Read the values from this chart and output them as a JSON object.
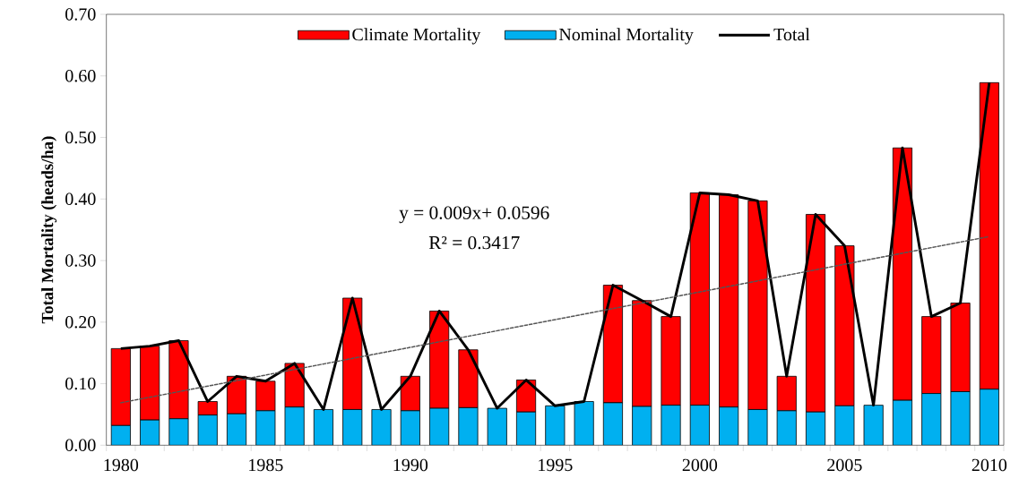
{
  "chart_data": {
    "type": "bar",
    "stacked": true,
    "ylabel": "Total Mortality (heads/ha)",
    "legend": "top",
    "x": [
      1980,
      1981,
      1982,
      1983,
      1984,
      1985,
      1986,
      1987,
      1988,
      1989,
      1990,
      1991,
      1992,
      1993,
      1994,
      1995,
      1996,
      1997,
      1998,
      1999,
      2000,
      2001,
      2002,
      2003,
      2004,
      2005,
      2006,
      2007,
      2008,
      2009,
      2010
    ],
    "series": [
      {
        "name": "Nominal Mortality",
        "color": "#00b0f0",
        "values": [
          0.032,
          0.041,
          0.043,
          0.049,
          0.051,
          0.056,
          0.062,
          0.058,
          0.058,
          0.058,
          0.056,
          0.06,
          0.061,
          0.06,
          0.054,
          0.064,
          0.071,
          0.069,
          0.063,
          0.065,
          0.065,
          0.062,
          0.058,
          0.056,
          0.054,
          0.064,
          0.065,
          0.073,
          0.084,
          0.087,
          0.091
        ]
      },
      {
        "name": "Climate Mortality",
        "color": "#ff0000",
        "values": [
          0.125,
          0.12,
          0.127,
          0.022,
          0.061,
          0.048,
          0.071,
          0,
          0.181,
          0,
          0.056,
          0.158,
          0.094,
          0,
          0.052,
          0,
          0,
          0.191,
          0.172,
          0.144,
          0.345,
          0.345,
          0.339,
          0.056,
          0.321,
          0.26,
          0,
          0.41,
          0.125,
          0.144,
          0.498
        ]
      },
      {
        "name": "Total",
        "type": "line",
        "color": "#000000",
        "line_style": "solid",
        "values": [
          0.157,
          0.161,
          0.17,
          0.071,
          0.112,
          0.104,
          0.133,
          0.058,
          0.239,
          0.058,
          0.112,
          0.218,
          0.155,
          0.06,
          0.106,
          0.064,
          0.071,
          0.26,
          0.235,
          0.209,
          0.41,
          0.407,
          0.397,
          0.112,
          0.375,
          0.324,
          0.065,
          0.483,
          0.209,
          0.231,
          0.589
        ]
      },
      {
        "type": "line",
        "color": "#555555",
        "line_style": "dashed",
        "x": [
          1980,
          2010
        ],
        "values": [
          0.069,
          0.339
        ]
      }
    ],
    "xlim": [
      1979.5,
      2010.5
    ],
    "xticks": [
      1980,
      1985,
      1990,
      1995,
      2000,
      2005,
      2010,
      {
        "value": 1979.5,
        "label": null
      },
      {
        "value": 1980.5,
        "label": null
      },
      {
        "value": 1981.5,
        "label": null
      },
      {
        "value": 1982.5,
        "label": null
      },
      {
        "value": 1983.5,
        "label": null
      },
      {
        "value": 1984.5,
        "label": null
      },
      {
        "value": 1985.5,
        "label": null
      },
      {
        "value": 1986.5,
        "label": null
      },
      {
        "value": 1987.5,
        "label": null
      },
      {
        "value": 1988.5,
        "label": null
      },
      {
        "value": 1989.5,
        "label": null
      },
      {
        "value": 1990.5,
        "label": null
      },
      {
        "value": 1991.5,
        "label": null
      },
      {
        "value": 1992.5,
        "label": null
      },
      {
        "value": 1993.5,
        "label": null
      },
      {
        "value": 1994.5,
        "label": null
      },
      {
        "value": 1995.5,
        "label": null
      },
      {
        "value": 1996.5,
        "label": null
      },
      {
        "value": 1997.5,
        "label": null
      },
      {
        "value": 1998.5,
        "label": null
      },
      {
        "value": 1999.5,
        "label": null
      },
      {
        "value": 2000.5,
        "label": null
      },
      {
        "value": 2001.5,
        "label": null
      },
      {
        "value": 2002.5,
        "label": null
      },
      {
        "value": 2003.5,
        "label": null
      },
      {
        "value": 2004.5,
        "label": null
      },
      {
        "value": 2005.5,
        "label": null
      },
      {
        "value": 2006.5,
        "label": null
      },
      {
        "value": 2007.5,
        "label": null
      },
      {
        "value": 2008.5,
        "label": null
      },
      {
        "value": 2009.5,
        "label": null
      },
      {
        "value": 2010.5,
        "label": null
      }
    ],
    "ylim": [
      0,
      0.7
    ],
    "yticks": [
      {
        "value": 0,
        "label": "0.00"
      },
      {
        "value": 0.1,
        "label": "0.10"
      },
      {
        "value": 0.2,
        "label": "0.20"
      },
      {
        "value": 0.3,
        "label": "0.30"
      },
      {
        "value": 0.4,
        "label": "0.40"
      },
      {
        "value": 0.5,
        "label": "0.50"
      },
      {
        "value": 0.6,
        "label": "0.60"
      },
      {
        "value": 0.7,
        "label": "0.70"
      }
    ],
    "annotations": [
      "y = 0.009x+ 0.0596",
      "R² = 0.3417"
    ]
  }
}
